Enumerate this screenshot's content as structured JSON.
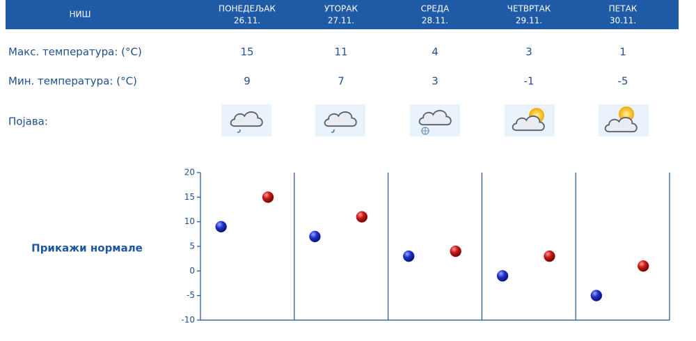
{
  "forecast": {
    "city": "НИШ",
    "days": [
      {
        "name": "ПОНЕДЕЉАК",
        "date": "26.11."
      },
      {
        "name": "УТОРАК",
        "date": "27.11."
      },
      {
        "name": "СРЕДА",
        "date": "28.11."
      },
      {
        "name": "ЧЕТВРТАК",
        "date": "29.11."
      },
      {
        "name": "ПЕТАК",
        "date": "30.11."
      }
    ],
    "rows": [
      {
        "label": "Макс. температура: (°C)",
        "values": [
          15,
          11,
          4,
          3,
          1
        ]
      },
      {
        "label": "Мин. температура: (°C)",
        "values": [
          9,
          7,
          3,
          -1,
          -5
        ]
      },
      {
        "label": "Појава:"
      }
    ]
  },
  "link": "Прикажи нормале",
  "chart": {
    "ylim": [
      -10,
      20
    ],
    "yticks": [
      -10,
      -5,
      0,
      5,
      10,
      15,
      20
    ],
    "max_color": "#cc1a1a",
    "min_color": "#2233cc"
  }
}
